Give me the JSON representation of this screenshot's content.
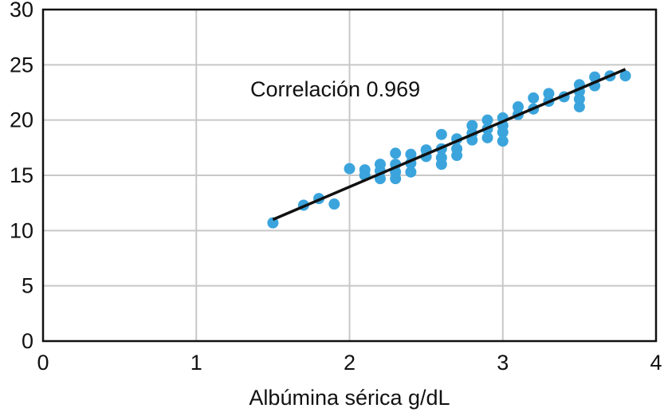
{
  "chart_data": {
    "type": "scatter",
    "title": "",
    "xlabel": "Albúmina sérica g/dL",
    "ylabel": "",
    "xlim": [
      0,
      4
    ],
    "ylim": [
      0,
      30
    ],
    "x_ticks": [
      "0",
      "1",
      "2",
      "3",
      "4"
    ],
    "y_ticks": [
      "0",
      "5",
      "10",
      "15",
      "20",
      "25",
      "30"
    ],
    "grid": true,
    "annotation": "Correlación 0.969",
    "trendline": {
      "x": [
        1.5,
        3.8
      ],
      "y": [
        11.0,
        24.6
      ]
    },
    "series": [
      {
        "color": "#3ba4dc",
        "points": [
          [
            1.5,
            10.7
          ],
          [
            1.7,
            12.3
          ],
          [
            1.8,
            12.9
          ],
          [
            1.9,
            12.4
          ],
          [
            2.0,
            15.6
          ],
          [
            2.1,
            15.5
          ],
          [
            2.1,
            15.0
          ],
          [
            2.2,
            16.0
          ],
          [
            2.2,
            15.4
          ],
          [
            2.2,
            14.7
          ],
          [
            2.3,
            17.0
          ],
          [
            2.3,
            16.0
          ],
          [
            2.3,
            15.3
          ],
          [
            2.3,
            14.7
          ],
          [
            2.4,
            16.9
          ],
          [
            2.4,
            16.1
          ],
          [
            2.4,
            15.3
          ],
          [
            2.5,
            17.3
          ],
          [
            2.5,
            16.7
          ],
          [
            2.6,
            18.7
          ],
          [
            2.6,
            17.4
          ],
          [
            2.6,
            16.6
          ],
          [
            2.6,
            16.0
          ],
          [
            2.7,
            18.3
          ],
          [
            2.7,
            17.4
          ],
          [
            2.7,
            16.8
          ],
          [
            2.8,
            19.5
          ],
          [
            2.8,
            18.8
          ],
          [
            2.8,
            18.2
          ],
          [
            2.9,
            20.0
          ],
          [
            2.9,
            19.2
          ],
          [
            2.9,
            18.4
          ],
          [
            3.0,
            20.2
          ],
          [
            3.0,
            19.5
          ],
          [
            3.0,
            18.9
          ],
          [
            3.0,
            18.1
          ],
          [
            3.1,
            21.2
          ],
          [
            3.1,
            20.5
          ],
          [
            3.2,
            22.0
          ],
          [
            3.2,
            21.0
          ],
          [
            3.3,
            22.4
          ],
          [
            3.3,
            21.7
          ],
          [
            3.4,
            22.1
          ],
          [
            3.5,
            23.2
          ],
          [
            3.5,
            22.6
          ],
          [
            3.5,
            21.9
          ],
          [
            3.5,
            21.2
          ],
          [
            3.6,
            23.9
          ],
          [
            3.6,
            23.1
          ],
          [
            3.7,
            24.0
          ],
          [
            3.8,
            24.0
          ]
        ]
      }
    ]
  }
}
